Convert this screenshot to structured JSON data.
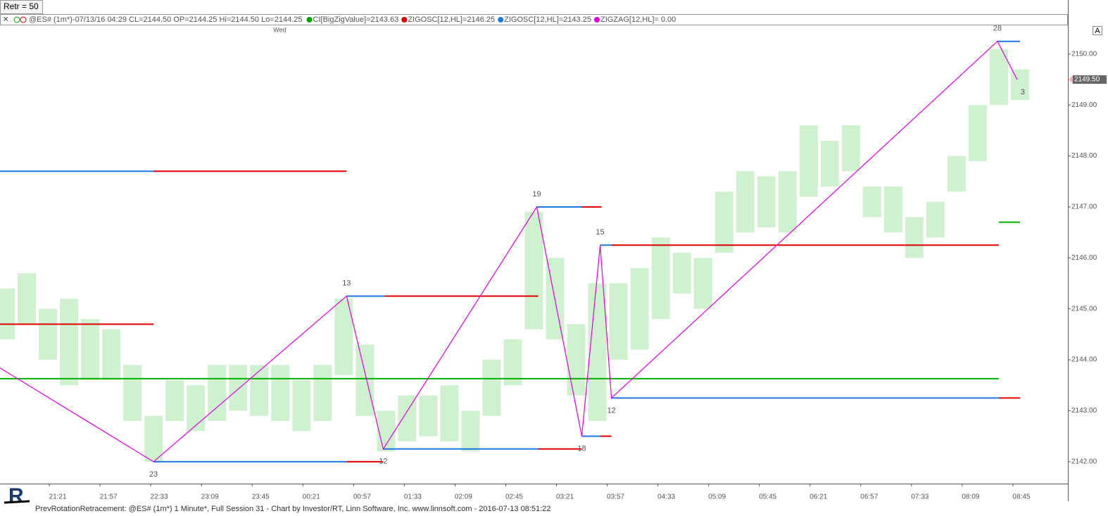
{
  "chart_data": {
    "type": "zigzag",
    "button": "Retr = 50",
    "title": "@ES# (1m*)-07/13/16 04:29 CL=2144.50 OP=2144.25 Hi=2144.50 Lo=2144.25",
    "indicators": [
      {
        "name": "CI[BigZigValue]=2143.63",
        "color": "#00a000"
      },
      {
        "name": "ZIGOSC[12,HL]=2146.25",
        "color": "#e00000"
      },
      {
        "name": "ZIGOSC[12,HL]=2143.25",
        "color": "#1e78e6"
      },
      {
        "name": "ZIGZAG[12,HL]= 0.00",
        "color": "#e000e0"
      }
    ],
    "day_label": {
      "x": "00:00",
      "text": "Wed"
    },
    "axis_button": "A",
    "footer": "PrevRotationRetracement: @ES# (1m*) 1 Minute*, Full Session 31 - Chart by Investor/RT, Linn Software, Inc. www.linnsoft.com - 2016-07-13 08:51:22",
    "xlim": [
      "20:46",
      "09:24"
    ],
    "xticks": [
      "21:21",
      "21:57",
      "22:33",
      "23:09",
      "23:45",
      "00:21",
      "00:57",
      "01:33",
      "02:09",
      "02:45",
      "03:21",
      "03:57",
      "04:33",
      "05:09",
      "05:45",
      "06:21",
      "06:57",
      "07:33",
      "08:09",
      "08:45"
    ],
    "ylim": [
      2141.57,
      2150.55
    ],
    "yticks": [
      {
        "value": 2142,
        "label": "2142.00"
      },
      {
        "value": 2143,
        "label": "2143.00"
      },
      {
        "value": 2144,
        "label": "2144.00"
      },
      {
        "value": 2145,
        "label": "2145.00"
      },
      {
        "value": 2146,
        "label": "2146.00"
      },
      {
        "value": 2147,
        "label": "2147.00"
      },
      {
        "value": 2148,
        "label": "2148.00"
      },
      {
        "value": 2149,
        "label": "2149.00"
      },
      {
        "value": 2150,
        "label": "2150.00"
      }
    ],
    "last_price": {
      "value": 2149.5,
      "label": "2149.50"
    },
    "bars": {
      "color": "#a8e6a8",
      "x": [
        "20:50",
        "21:05",
        "21:20",
        "21:35",
        "21:50",
        "22:05",
        "22:20",
        "22:35",
        "22:50",
        "23:05",
        "23:20",
        "23:35",
        "23:50",
        "00:05",
        "00:20",
        "00:35",
        "00:50",
        "01:05",
        "01:20",
        "01:35",
        "01:50",
        "02:05",
        "02:20",
        "02:35",
        "02:50",
        "03:05",
        "03:20",
        "03:35",
        "03:50",
        "04:05",
        "04:20",
        "04:35",
        "04:50",
        "05:05",
        "05:20",
        "05:35",
        "05:50",
        "06:05",
        "06:20",
        "06:35",
        "06:50",
        "07:05",
        "07:20",
        "07:35",
        "07:50",
        "08:05",
        "08:20",
        "08:35",
        "08:50"
      ],
      "high": [
        2145.4,
        2145.7,
        2145.0,
        2145.2,
        2144.8,
        2144.6,
        2143.9,
        2142.9,
        2143.6,
        2143.5,
        2143.9,
        2143.9,
        2143.9,
        2143.9,
        2143.6,
        2143.9,
        2145.2,
        2144.3,
        2143.0,
        2143.3,
        2143.3,
        2143.5,
        2143.0,
        2144.0,
        2144.4,
        2146.9,
        2146.0,
        2144.7,
        2145.5,
        2145.5,
        2145.8,
        2146.4,
        2146.1,
        2146.0,
        2147.3,
        2147.7,
        2147.6,
        2147.7,
        2148.6,
        2148.3,
        2148.6,
        2147.4,
        2147.4,
        2146.8,
        2147.1,
        2148.0,
        2149.0,
        2150.1,
        2149.7
      ],
      "low": [
        2144.4,
        2144.7,
        2144.0,
        2143.5,
        2143.6,
        2143.6,
        2142.8,
        2142.0,
        2142.8,
        2142.6,
        2142.8,
        2143.0,
        2142.9,
        2142.8,
        2142.6,
        2142.8,
        2143.7,
        2142.9,
        2142.2,
        2142.4,
        2142.5,
        2142.4,
        2142.2,
        2142.9,
        2143.5,
        2144.6,
        2144.4,
        2143.3,
        2142.8,
        2144.0,
        2144.2,
        2144.8,
        2145.3,
        2145.0,
        2146.1,
        2146.5,
        2146.6,
        2146.5,
        2147.2,
        2147.4,
        2147.7,
        2146.8,
        2146.5,
        2146.0,
        2146.4,
        2147.3,
        2147.9,
        2149.0,
        2149.1
      ]
    },
    "levels": [
      {
        "start": "20:46",
        "end": "22:35",
        "price": 2147.7,
        "color": "#1e78e6"
      },
      {
        "start": "22:35",
        "end": "00:52",
        "price": 2147.7,
        "color": "#e00000"
      },
      {
        "start": "20:46",
        "end": "22:35",
        "price": 2144.7,
        "color": "#e00000"
      },
      {
        "start": "22:35",
        "end": "00:52",
        "price": 2142.0,
        "color": "#1e78e6"
      },
      {
        "start": "00:52",
        "end": "01:18",
        "price": 2142.0,
        "color": "#e00000"
      },
      {
        "start": "00:52",
        "end": "01:19",
        "price": 2145.25,
        "color": "#1e78e6"
      },
      {
        "start": "01:19",
        "end": "03:08",
        "price": 2145.25,
        "color": "#e00000"
      },
      {
        "start": "01:18",
        "end": "03:08",
        "price": 2142.25,
        "color": "#1e78e6"
      },
      {
        "start": "03:08",
        "end": "03:39",
        "price": 2142.25,
        "color": "#e00000"
      },
      {
        "start": "03:07",
        "end": "03:39",
        "price": 2147.0,
        "color": "#1e78e6"
      },
      {
        "start": "03:39",
        "end": "03:53",
        "price": 2147.0,
        "color": "#e00000"
      },
      {
        "start": "03:39",
        "end": "03:52",
        "price": 2142.5,
        "color": "#1e78e6"
      },
      {
        "start": "03:52",
        "end": "04:00",
        "price": 2142.5,
        "color": "#e00000"
      },
      {
        "start": "03:52",
        "end": "04:00",
        "price": 2146.25,
        "color": "#1e78e6"
      },
      {
        "start": "04:00",
        "end": "08:35",
        "price": 2146.25,
        "color": "#e00000"
      },
      {
        "start": "04:00",
        "end": "08:35",
        "price": 2143.25,
        "color": "#1e78e6"
      },
      {
        "start": "08:35",
        "end": "08:50",
        "price": 2143.25,
        "color": "#e00000"
      },
      {
        "start": "08:34",
        "end": "08:50",
        "price": 2150.25,
        "color": "#1e78e6"
      },
      {
        "start": "20:46",
        "end": "08:35",
        "price": 2143.63,
        "color": "#00b000"
      },
      {
        "start": "08:35",
        "end": "08:50",
        "price": 2146.7,
        "color": "#00b000"
      }
    ],
    "zigzag": {
      "color": "#e000e0",
      "x": [
        "20:46",
        "22:35",
        "00:52",
        "01:18",
        "03:07",
        "03:39",
        "03:52",
        "04:00",
        "08:34",
        "08:48"
      ],
      "values": [
        2143.84,
        2142.0,
        2145.25,
        2142.25,
        2147.0,
        2142.5,
        2146.25,
        2143.25,
        2150.25,
        2149.5
      ],
      "labels": [
        null,
        23,
        13,
        12,
        19,
        18,
        15,
        12,
        28,
        3
      ]
    }
  }
}
